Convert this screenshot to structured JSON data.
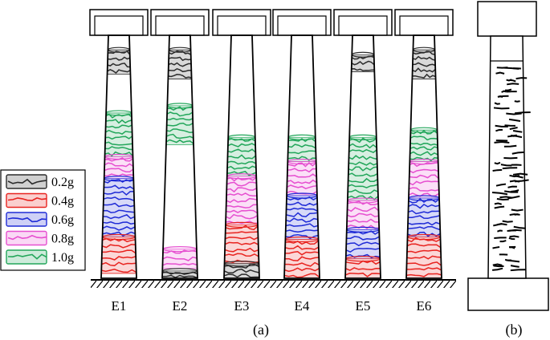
{
  "colors": {
    "0.2g": "#2b2b2b",
    "0.4g": "#e8231f",
    "0.6g": "#1f2bd6",
    "0.8g": "#e64fd0",
    "1.0g": "#22a65a"
  },
  "legend": {
    "items": [
      {
        "key": "0.2g",
        "label": "0.2g"
      },
      {
        "key": "0.4g",
        "label": "0.4g"
      },
      {
        "key": "0.6g",
        "label": "0.6g"
      },
      {
        "key": "0.8g",
        "label": "0.8g"
      },
      {
        "key": "1.0g",
        "label": "1.0g"
      }
    ]
  },
  "piers": [
    {
      "label": "E1",
      "bands": [
        {
          "level": "0.2g",
          "from": 0.84,
          "to": 0.94
        },
        {
          "level": "1.0g",
          "from": 0.5,
          "to": 0.68
        },
        {
          "level": "0.8g",
          "from": 0.41,
          "to": 0.5
        },
        {
          "level": "0.6g",
          "from": 0.17,
          "to": 0.41
        },
        {
          "level": "0.4g",
          "from": 0.02,
          "to": 0.17
        }
      ]
    },
    {
      "label": "E2",
      "bands": [
        {
          "level": "0.2g",
          "from": 0.82,
          "to": 0.94
        },
        {
          "level": "1.0g",
          "from": 0.55,
          "to": 0.71
        },
        {
          "level": "0.8g",
          "from": 0.04,
          "to": 0.12
        },
        {
          "level": "0.2g",
          "from": 0.0,
          "to": 0.03
        }
      ]
    },
    {
      "label": "E3",
      "bands": [
        {
          "level": "1.0g",
          "from": 0.42,
          "to": 0.58
        },
        {
          "level": "0.8g",
          "from": 0.22,
          "to": 0.42
        },
        {
          "level": "0.4g",
          "from": 0.06,
          "to": 0.22
        },
        {
          "level": "0.2g",
          "from": 0.0,
          "to": 0.06
        }
      ]
    },
    {
      "label": "E4",
      "bands": [
        {
          "level": "1.0g",
          "from": 0.48,
          "to": 0.58
        },
        {
          "level": "0.8g",
          "from": 0.34,
          "to": 0.48
        },
        {
          "level": "0.6g",
          "from": 0.16,
          "to": 0.34
        },
        {
          "level": "0.4g",
          "from": 0.0,
          "to": 0.16
        }
      ]
    },
    {
      "label": "E5",
      "bands": [
        {
          "level": "0.2g",
          "from": 0.85,
          "to": 0.92
        },
        {
          "level": "1.0g",
          "from": 0.32,
          "to": 0.58
        },
        {
          "level": "0.8g",
          "from": 0.2,
          "to": 0.32
        },
        {
          "level": "0.6g",
          "from": 0.08,
          "to": 0.2
        },
        {
          "level": "0.4g",
          "from": 0.0,
          "to": 0.08
        }
      ]
    },
    {
      "label": "E6",
      "bands": [
        {
          "level": "0.2g",
          "from": 0.82,
          "to": 0.94
        },
        {
          "level": "1.0g",
          "from": 0.48,
          "to": 0.61
        },
        {
          "level": "0.8g",
          "from": 0.33,
          "to": 0.48
        },
        {
          "level": "0.6g",
          "from": 0.17,
          "to": 0.33
        },
        {
          "level": "0.4g",
          "from": 0.0,
          "to": 0.17
        }
      ]
    }
  ],
  "panel_a": {
    "label": "(a)"
  },
  "panel_b": {
    "label": "(b)"
  }
}
